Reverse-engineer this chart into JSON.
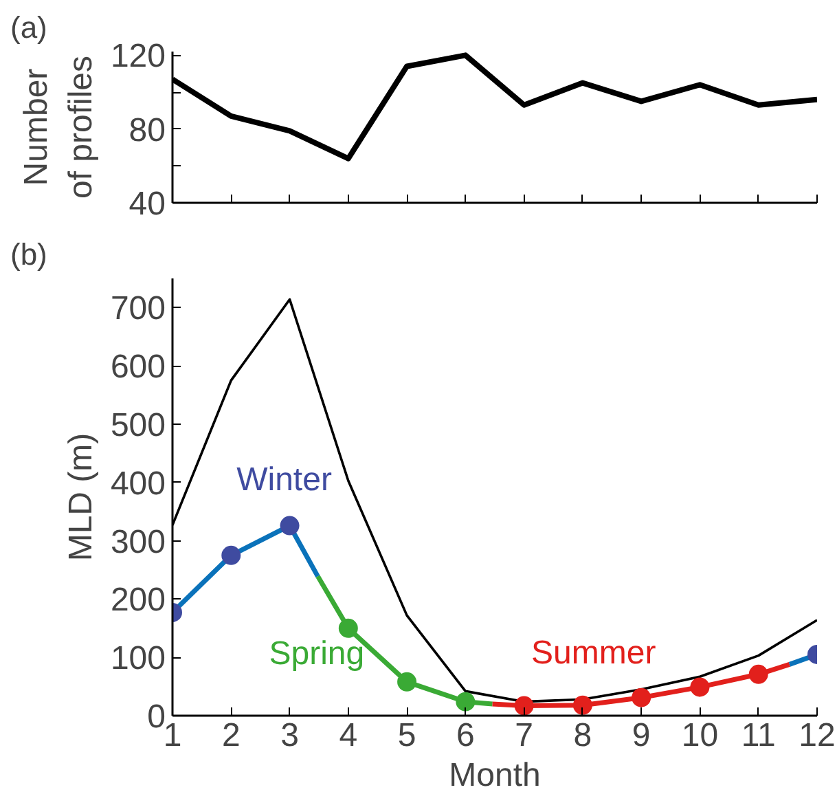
{
  "chart_data": [
    {
      "type": "line",
      "title": "(a)",
      "ylabel": "Number\nof profiles",
      "x": [
        1,
        2,
        3,
        4,
        5,
        6,
        7,
        8,
        9,
        10,
        11,
        12
      ],
      "xlim": [
        1,
        12
      ],
      "xticks": [
        {
          "value": 1,
          "label": null
        },
        {
          "value": 2,
          "label": null
        },
        {
          "value": 3,
          "label": null
        },
        {
          "value": 4,
          "label": null
        },
        {
          "value": 5,
          "label": null
        },
        {
          "value": 6,
          "label": null
        },
        {
          "value": 7,
          "label": null
        },
        {
          "value": 8,
          "label": null
        },
        {
          "value": 9,
          "label": null
        },
        {
          "value": 10,
          "label": null
        },
        {
          "value": 11,
          "label": null
        },
        {
          "value": 12,
          "label": null
        }
      ],
      "ylim": [
        40,
        122
      ],
      "yticks": [
        40,
        {
          "value": 60,
          "label": null
        },
        80,
        {
          "value": 100,
          "label": null
        },
        120
      ],
      "tick_labels": "y",
      "grid": false,
      "series": [
        {
          "color": "#000000",
          "values": [
            107,
            87,
            79,
            64,
            114,
            120,
            93,
            105,
            95,
            104,
            93,
            96
          ]
        }
      ]
    },
    {
      "type": "line",
      "title": "(b)",
      "xlabel": "Month",
      "ylabel": "MLD (m)",
      "x": [
        1,
        2,
        3,
        4,
        5,
        6,
        7,
        8,
        9,
        10,
        11,
        12
      ],
      "xlim": [
        1,
        12
      ],
      "xticks": [
        1,
        2,
        3,
        4,
        5,
        6,
        7,
        8,
        9,
        10,
        11,
        12
      ],
      "ylim": [
        0,
        750
      ],
      "yticks": [
        0,
        100,
        200,
        300,
        400,
        500,
        600,
        700
      ],
      "grid": false,
      "annotations": [
        "Winter",
        "Spring",
        "Summer"
      ],
      "series": [
        {
          "color": "#000000",
          "values": [
            327,
            575,
            714,
            403,
            172,
            42,
            24,
            28,
            45,
            67,
            103,
            164
          ]
        },
        {
          "color": "#0a72ba",
          "x": [
            1,
            2,
            3,
            3.48
          ],
          "values": [
            177,
            275,
            326,
            239
          ]
        },
        {
          "color": "#3aaa35",
          "x": [
            3.48,
            4,
            5,
            6,
            6.46
          ],
          "values": [
            239,
            150,
            58,
            24,
            20
          ]
        },
        {
          "color": "#e2201c",
          "x": [
            6.46,
            7,
            8,
            9,
            10,
            11,
            11.53
          ],
          "values": [
            20,
            17,
            18,
            31,
            49,
            71,
            88
          ]
        },
        {
          "color": "#0a72ba",
          "x": [
            11.53,
            12
          ],
          "values": [
            88,
            105
          ]
        },
        {
          "type": "scatter",
          "color": "#3f4ba0",
          "x": [
            1,
            2,
            3,
            12
          ],
          "values": [
            177,
            275,
            326,
            105
          ]
        },
        {
          "type": "scatter",
          "color": "#3aaa35",
          "x": [
            4,
            5,
            6
          ],
          "values": [
            150,
            58,
            24
          ]
        },
        {
          "type": "scatter",
          "color": "#e2201c",
          "x": [
            7,
            8,
            9,
            10,
            11
          ],
          "values": [
            17,
            18,
            31,
            49,
            71
          ]
        }
      ]
    }
  ]
}
